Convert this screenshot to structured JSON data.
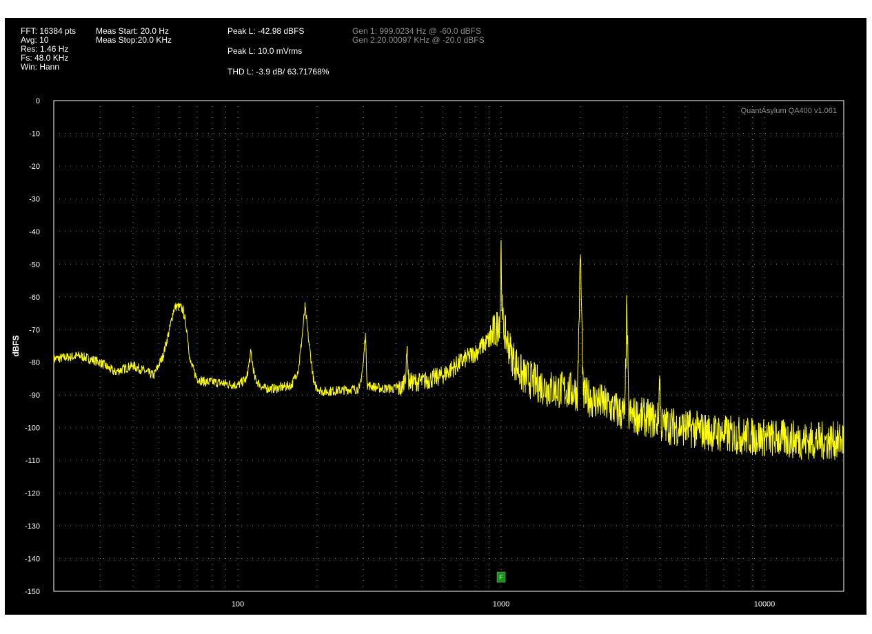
{
  "header": {
    "col1": [
      "FFT: 16384 pts",
      "Avg: 10",
      "Res: 1.46 Hz",
      "Fs: 48.0 KHz",
      "Win: Hann"
    ],
    "col2": [
      "Meas Start: 20.0 Hz",
      "Meas Stop:20.0 KHz"
    ],
    "peak_db": "Peak L: -42.98 dBFS",
    "peak_v": "Peak L: 10.0 mVrms",
    "thd": "THD L: -3.9 dB/ 63.71768%",
    "gen1": "Gen 1: 999.0234 Hz @ -60.0  dBFS",
    "gen2": "Gen 2:20.00097 KHz @ -20.0  dBFS"
  },
  "plot": {
    "watermark": "QuantAsylum QA400 v1.061",
    "marker_label": "F"
  },
  "chart_data": {
    "type": "line",
    "ylabel": "dBFS",
    "xscale": "log",
    "xlim": [
      20,
      20000
    ],
    "ylim": [
      -150,
      0
    ],
    "yticks": [
      0,
      -10,
      -20,
      -30,
      -40,
      -50,
      -60,
      -70,
      -80,
      -90,
      -100,
      -110,
      -120,
      -130,
      -140,
      -150
    ],
    "xtick_labels": [
      100,
      1000,
      10000
    ],
    "grid": true,
    "trace_color": "#ffff00",
    "marker_frequency_hz": 1000,
    "series": [
      {
        "x": [
          20,
          25,
          30,
          34,
          40,
          45,
          48,
          52,
          55,
          57,
          58,
          60,
          62,
          64,
          66,
          70,
          75,
          80,
          90,
          100,
          108,
          112,
          116,
          125,
          140,
          160,
          170,
          175,
          180,
          185,
          195,
          210,
          250,
          290,
          300,
          305,
          310,
          350,
          420,
          435,
          440,
          445,
          500,
          600,
          700,
          800,
          900,
          960,
          990,
          999,
          1010,
          1040,
          1100,
          1200,
          1500,
          1950,
          2000,
          2050,
          2500,
          2950,
          3000,
          3050,
          3600,
          3950,
          4000,
          4050,
          5000,
          7000,
          10000,
          15000,
          20000
        ],
        "values": [
          -79,
          -78,
          -80,
          -83,
          -81,
          -83,
          -84,
          -78,
          -70,
          -64,
          -63,
          -63,
          -64,
          -70,
          -80,
          -85,
          -86,
          -86,
          -86.5,
          -87,
          -85,
          -77,
          -85,
          -88,
          -88,
          -87,
          -82,
          -73,
          -63,
          -72,
          -87,
          -89,
          -88.5,
          -88,
          -80,
          -71,
          -87,
          -88,
          -88,
          -83,
          -75,
          -86,
          -86,
          -84,
          -80,
          -77,
          -73,
          -70,
          -66,
          -43,
          -67,
          -72,
          -78,
          -84,
          -88,
          -89,
          -47,
          -90,
          -93,
          -96,
          -62,
          -96,
          -97,
          -98,
          -84,
          -99,
          -100,
          -102,
          -103,
          -104,
          -104
        ]
      }
    ]
  }
}
